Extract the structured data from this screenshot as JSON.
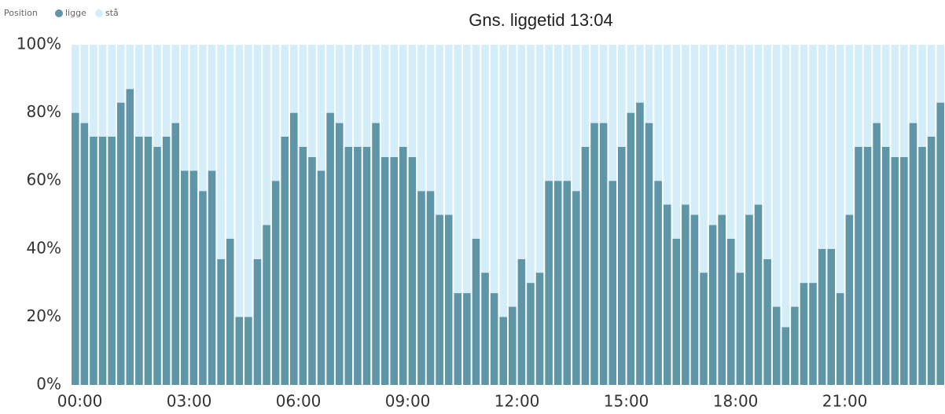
{
  "chart_data": {
    "type": "stacked_bar",
    "title": "Gns. liggetid 13:04",
    "legend_title": "Position",
    "categories": [
      "00:00",
      null,
      null,
      null,
      null,
      null,
      null,
      null,
      null,
      null,
      null,
      null,
      "03:00",
      null,
      null,
      null,
      null,
      null,
      null,
      null,
      null,
      null,
      null,
      null,
      "06:00",
      null,
      null,
      null,
      null,
      null,
      null,
      null,
      null,
      null,
      null,
      null,
      "09:00",
      null,
      null,
      null,
      null,
      null,
      null,
      null,
      null,
      null,
      null,
      null,
      "12:00",
      null,
      null,
      null,
      null,
      null,
      null,
      null,
      null,
      null,
      null,
      null,
      "15:00",
      null,
      null,
      null,
      null,
      null,
      null,
      null,
      null,
      null,
      null,
      null,
      "18:00",
      null,
      null,
      null,
      null,
      null,
      null,
      null,
      null,
      null,
      null,
      null,
      "21:00",
      null,
      null,
      null,
      null,
      null,
      null,
      null,
      null,
      null,
      null,
      null
    ],
    "series": [
      {
        "name": "ligge",
        "color": "#5e96a7",
        "values": [
          80,
          77,
          73,
          73,
          73,
          83,
          87,
          73,
          73,
          70,
          73,
          77,
          63,
          63,
          57,
          63,
          37,
          43,
          20,
          20,
          37,
          47,
          60,
          73,
          80,
          70,
          67,
          63,
          80,
          77,
          70,
          70,
          70,
          77,
          67,
          67,
          70,
          67,
          57,
          57,
          50,
          50,
          27,
          27,
          43,
          33,
          27,
          20,
          23,
          37,
          30,
          33,
          60,
          60,
          60,
          57,
          70,
          77,
          77,
          60,
          70,
          80,
          83,
          77,
          60,
          53,
          43,
          53,
          50,
          33,
          47,
          50,
          43,
          33,
          50,
          53,
          37,
          23,
          17,
          23,
          30,
          30,
          40,
          40,
          27,
          50,
          70,
          70,
          77,
          70,
          67,
          67,
          77,
          70,
          73,
          83
        ]
      },
      {
        "name": "stå",
        "color": "#d3eef8",
        "values": [
          20,
          23,
          27,
          27,
          27,
          17,
          13,
          27,
          27,
          30,
          27,
          23,
          37,
          37,
          43,
          37,
          63,
          57,
          80,
          80,
          63,
          53,
          40,
          27,
          20,
          30,
          33,
          37,
          20,
          23,
          30,
          30,
          30,
          23,
          33,
          33,
          30,
          33,
          43,
          43,
          50,
          50,
          73,
          73,
          57,
          67,
          73,
          80,
          77,
          63,
          70,
          67,
          40,
          40,
          40,
          43,
          30,
          23,
          23,
          40,
          30,
          20,
          17,
          23,
          40,
          47,
          57,
          47,
          50,
          67,
          53,
          50,
          57,
          67,
          50,
          47,
          63,
          77,
          83,
          77,
          70,
          70,
          60,
          60,
          73,
          50,
          30,
          30,
          23,
          30,
          33,
          33,
          23,
          30,
          27,
          17
        ]
      }
    ],
    "ylim": [
      0,
      100
    ],
    "yticks": [
      {
        "value": 0,
        "label": "0%"
      },
      {
        "value": 20,
        "label": "20%"
      },
      {
        "value": 40,
        "label": "40%"
      },
      {
        "value": 60,
        "label": "60%"
      },
      {
        "value": 80,
        "label": "80%"
      },
      {
        "value": 100,
        "label": "100%"
      }
    ]
  }
}
